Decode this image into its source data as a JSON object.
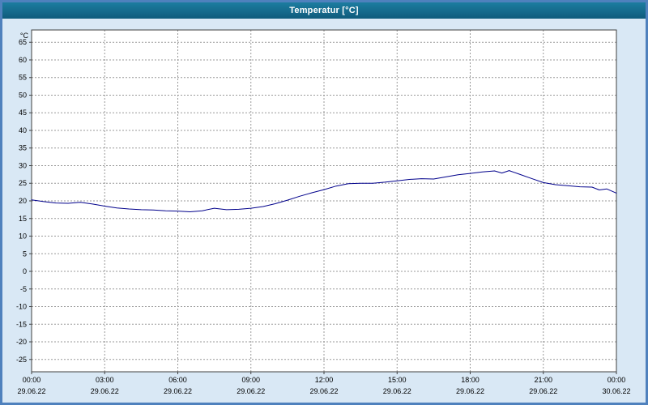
{
  "window": {
    "title": "Temperatur [°C]"
  },
  "colors": {
    "titlebar_top": "#1d7da0",
    "titlebar_bottom": "#0f5b7c",
    "frame": "#4f81bd",
    "background": "#d9e8f5",
    "plot_bg": "#ffffff",
    "plot_border": "#404040",
    "grid": "#999999",
    "tick_text": "#000000",
    "line": "#00008b"
  },
  "chart_data": {
    "type": "line",
    "title": "Temperatur [°C]",
    "xlabel": "",
    "ylabel": "°C",
    "grid": "dashed",
    "legend": "none",
    "ylim": [
      -28.5,
      68.5
    ],
    "xlim": [
      0,
      24
    ],
    "y_ticks": [
      65,
      60,
      55,
      50,
      45,
      40,
      35,
      30,
      25,
      20,
      15,
      10,
      5,
      0,
      -5,
      -10,
      -15,
      -20,
      -25
    ],
    "x_ticks": [
      {
        "hour": 0,
        "time": "00:00",
        "date": "29.06.22"
      },
      {
        "hour": 3,
        "time": "03:00",
        "date": "29.06.22"
      },
      {
        "hour": 6,
        "time": "06:00",
        "date": "29.06.22"
      },
      {
        "hour": 9,
        "time": "09:00",
        "date": "29.06.22"
      },
      {
        "hour": 12,
        "time": "12:00",
        "date": "29.06.22"
      },
      {
        "hour": 15,
        "time": "15:00",
        "date": "29.06.22"
      },
      {
        "hour": 18,
        "time": "18:00",
        "date": "29.06.22"
      },
      {
        "hour": 21,
        "time": "21:00",
        "date": "29.06.22"
      },
      {
        "hour": 24,
        "time": "00:00",
        "date": "30.06.22"
      }
    ],
    "series": [
      {
        "name": "Temperatur",
        "unit": "°C",
        "points": [
          [
            0,
            20.3
          ],
          [
            0.5,
            19.8
          ],
          [
            1,
            19.4
          ],
          [
            1.5,
            19.3
          ],
          [
            2,
            19.6
          ],
          [
            2.5,
            19.1
          ],
          [
            3,
            18.5
          ],
          [
            3.5,
            18.0
          ],
          [
            4,
            17.7
          ],
          [
            4.5,
            17.5
          ],
          [
            5,
            17.4
          ],
          [
            5.5,
            17.2
          ],
          [
            6,
            17.1
          ],
          [
            6.5,
            16.9
          ],
          [
            7,
            17.2
          ],
          [
            7.5,
            17.9
          ],
          [
            8,
            17.5
          ],
          [
            8.5,
            17.6
          ],
          [
            9,
            17.9
          ],
          [
            9.5,
            18.4
          ],
          [
            10,
            19.2
          ],
          [
            10.5,
            20.2
          ],
          [
            11,
            21.3
          ],
          [
            11.5,
            22.3
          ],
          [
            12,
            23.2
          ],
          [
            12.5,
            24.2
          ],
          [
            13,
            24.9
          ],
          [
            13.5,
            25.0
          ],
          [
            14,
            25.0
          ],
          [
            14.5,
            25.3
          ],
          [
            15,
            25.7
          ],
          [
            15.5,
            26.1
          ],
          [
            16,
            26.3
          ],
          [
            16.5,
            26.2
          ],
          [
            17,
            26.8
          ],
          [
            17.5,
            27.4
          ],
          [
            18,
            27.8
          ],
          [
            18.5,
            28.2
          ],
          [
            19,
            28.5
          ],
          [
            19.3,
            27.9
          ],
          [
            19.6,
            28.6
          ],
          [
            20,
            27.6
          ],
          [
            20.5,
            26.4
          ],
          [
            21,
            25.2
          ],
          [
            21.5,
            24.6
          ],
          [
            22,
            24.3
          ],
          [
            22.5,
            24.0
          ],
          [
            23,
            23.9
          ],
          [
            23.3,
            23.1
          ],
          [
            23.6,
            23.4
          ],
          [
            24,
            22.2
          ]
        ]
      }
    ]
  }
}
